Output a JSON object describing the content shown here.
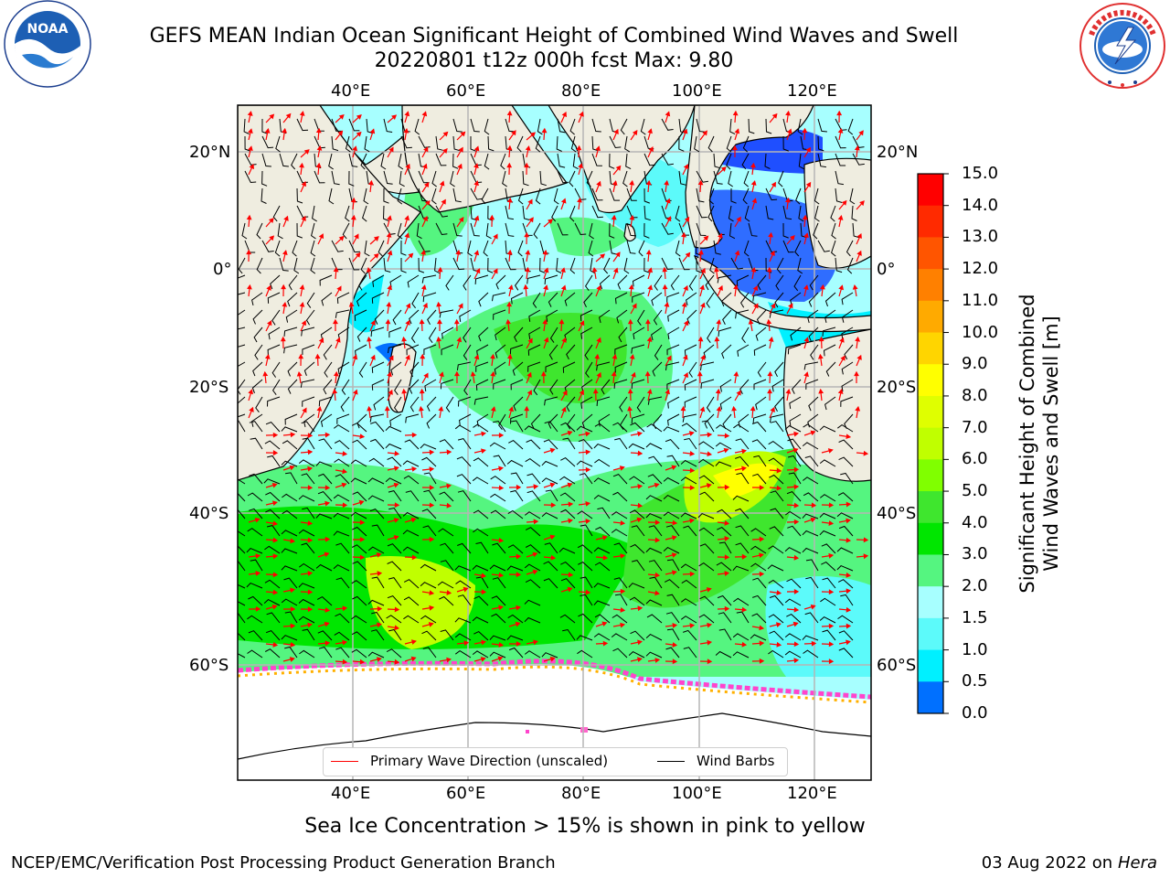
{
  "header": {
    "title_line1": "GEFS MEAN Indian Ocean Significant Height of Combined Wind Waves and Swell",
    "title_line2": "20220801 t12z 000h fcst   Max: 9.80"
  },
  "logos": {
    "noaa_name": "noaa-logo",
    "noaa_text": "NOAA",
    "noaa_ring_text": "NATIONAL OCEANIC AND ATMOSPHERIC ADMINISTRATION · U.S. DEPARTMENT OF COMMERCE",
    "nws_name": "nws-logo",
    "nws_ring_text": "NATIONAL WEATHER SERVICE"
  },
  "map": {
    "lon_labels": [
      "40°E",
      "60°E",
      "80°E",
      "100°E",
      "120°E"
    ],
    "lat_labels": [
      "20°N",
      "0°",
      "20°S",
      "40°S",
      "60°S"
    ],
    "colors": {
      "land": "#efede0",
      "ice": "#ffffff",
      "grid": "#b5b5b5",
      "barb": "#000000",
      "arrow": "#ff0000"
    }
  },
  "colorbar": {
    "title_line1": "Significant Height of Combined",
    "title_line2": "Wind Waves and Swell [m]",
    "ticks": [
      "15.0",
      "14.0",
      "13.0",
      "12.0",
      "11.0",
      "10.0",
      "9.0",
      "8.0",
      "7.0",
      "6.0",
      "5.0",
      "4.0",
      "3.0",
      "2.0",
      "1.5",
      "1.0",
      "0.5",
      "0.0"
    ],
    "colors_top_to_bottom": [
      "#ff0000",
      "#ff2a00",
      "#ff5500",
      "#ff8000",
      "#ffaa00",
      "#ffd500",
      "#ffff00",
      "#dfff00",
      "#c0ff00",
      "#80ff00",
      "#3fe62e",
      "#00e600",
      "#55f580",
      "#a7ffff",
      "#5cfafa",
      "#00f0ff",
      "#0070ff",
      "#0000ff"
    ]
  },
  "legend": {
    "wave_label": "Primary Wave Direction (unscaled)",
    "barb_label": "Wind Barbs",
    "wave_color": "#ff0000",
    "barb_color": "#000000"
  },
  "footer": {
    "ice_note": "Sea Ice Concentration > 15% is shown in pink to yellow",
    "credit": "NCEP/EMC/Verification Post Processing Product Generation Branch",
    "date": "03 Aug 2022 on",
    "host": "Hera"
  }
}
